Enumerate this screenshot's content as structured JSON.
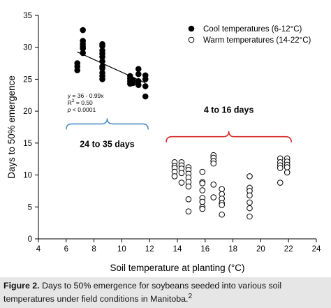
{
  "colors": {
    "cool": "#000000",
    "warm": "#ffffff",
    "regression": "#000000",
    "cool_bracket": "#4f8fc9",
    "warm_bracket": "#d62b2b",
    "caption_background": "#e6e6e6"
  },
  "chart_data": {
    "type": "scatter",
    "xlabel": "Soil temperature at planting (°C)",
    "ylabel": "Days to 50% emergence",
    "xlim": [
      4,
      24
    ],
    "ylim": [
      0,
      35
    ],
    "x_ticks": [
      4,
      6,
      8,
      10,
      12,
      14,
      16,
      18,
      20,
      22,
      24
    ],
    "y_ticks": [
      0,
      5,
      10,
      15,
      20,
      25,
      30,
      35
    ],
    "grid": false,
    "legend_position": "top-right",
    "series": [
      {
        "name": "Cool temperatures (6-12°C)",
        "marker": "filled-circle",
        "points": [
          [
            6.8,
            27.5
          ],
          [
            6.8,
            27.0
          ],
          [
            6.8,
            26.4
          ],
          [
            7.2,
            32.7
          ],
          [
            7.2,
            31.0
          ],
          [
            7.2,
            30.5
          ],
          [
            7.2,
            30.1
          ],
          [
            7.2,
            29.8
          ],
          [
            7.2,
            29.1
          ],
          [
            8.6,
            30.5
          ],
          [
            8.6,
            30.2
          ],
          [
            8.6,
            29.5
          ],
          [
            8.6,
            29.0
          ],
          [
            8.6,
            28.5
          ],
          [
            8.6,
            27.8
          ],
          [
            8.6,
            27.0
          ],
          [
            8.6,
            26.7
          ],
          [
            8.6,
            26.0
          ],
          [
            8.6,
            25.5
          ],
          [
            8.6,
            25.0
          ],
          [
            10.6,
            25.5
          ],
          [
            10.6,
            25.1
          ],
          [
            10.6,
            24.7
          ],
          [
            10.6,
            24.3
          ],
          [
            10.8,
            24.9
          ],
          [
            10.8,
            24.4
          ],
          [
            11.2,
            26.6
          ],
          [
            11.2,
            25.8
          ],
          [
            11.2,
            24.7
          ],
          [
            11.2,
            24.1
          ],
          [
            11.7,
            25.6
          ],
          [
            11.7,
            25.0
          ],
          [
            11.7,
            23.9
          ],
          [
            11.7,
            22.3
          ]
        ]
      },
      {
        "name": "Warm temperatures (14-22°C)",
        "marker": "open-circle",
        "points": [
          [
            13.8,
            12.0
          ],
          [
            13.8,
            11.4
          ],
          [
            13.8,
            11.1
          ],
          [
            13.8,
            10.5
          ],
          [
            13.8,
            9.8
          ],
          [
            14.3,
            12.0
          ],
          [
            14.3,
            11.5
          ],
          [
            14.3,
            11.0
          ],
          [
            14.3,
            10.3
          ],
          [
            14.3,
            8.8
          ],
          [
            14.8,
            11.2
          ],
          [
            14.8,
            10.8
          ],
          [
            14.8,
            10.2
          ],
          [
            14.8,
            9.6
          ],
          [
            14.8,
            8.9
          ],
          [
            14.8,
            8.2
          ],
          [
            14.8,
            6.2
          ],
          [
            14.8,
            4.3
          ],
          [
            15.8,
            10.5
          ],
          [
            15.8,
            8.9
          ],
          [
            15.8,
            8.7
          ],
          [
            15.8,
            7.6
          ],
          [
            15.8,
            6.4
          ],
          [
            15.8,
            5.8
          ],
          [
            15.8,
            5.0
          ],
          [
            15.8,
            4.7
          ],
          [
            16.6,
            13.1
          ],
          [
            16.6,
            12.7
          ],
          [
            16.6,
            12.2
          ],
          [
            16.6,
            11.8
          ],
          [
            16.6,
            8.5
          ],
          [
            16.6,
            6.5
          ],
          [
            17.2,
            7.8
          ],
          [
            17.2,
            7.0
          ],
          [
            17.2,
            6.3
          ],
          [
            17.2,
            5.6
          ],
          [
            17.2,
            5.3
          ],
          [
            17.2,
            3.8
          ],
          [
            19.2,
            9.8
          ],
          [
            19.2,
            8.0
          ],
          [
            19.2,
            7.5
          ],
          [
            19.2,
            6.8
          ],
          [
            19.2,
            5.7
          ],
          [
            19.2,
            4.8
          ],
          [
            19.2,
            3.5
          ],
          [
            21.4,
            12.6
          ],
          [
            21.4,
            12.0
          ],
          [
            21.4,
            11.5
          ],
          [
            21.4,
            11.1
          ],
          [
            21.4,
            8.8
          ],
          [
            21.9,
            12.6
          ],
          [
            21.9,
            12.1
          ],
          [
            21.9,
            11.6
          ],
          [
            21.9,
            11.2
          ],
          [
            21.9,
            10.4
          ]
        ]
      }
    ],
    "regression": {
      "x_range": [
        6.8,
        11.7
      ],
      "intercept": 36,
      "slope": -0.99,
      "equation": "y = 36 - 0.99x",
      "r2_label": "R",
      "r2_sup": "2",
      "r2_value": " = 0.50",
      "p_label": "p",
      "p_value": " < 0.0001"
    },
    "annotations": [
      {
        "id": "cool",
        "text": "24 to 35 days",
        "bracket_from": 6.0,
        "bracket_to": 11.9,
        "bracket_y": 18.0
      },
      {
        "id": "warm",
        "text": "4 to 16 days",
        "bracket_from": 13.2,
        "bracket_to": 22.2,
        "bracket_y": 16.0
      }
    ]
  },
  "caption": {
    "label": "Figure 2.",
    "text": " Days to 50% emergence for soybeans seeded into various soil temperatures under field conditions in Manitoba.",
    "sup": "2"
  }
}
